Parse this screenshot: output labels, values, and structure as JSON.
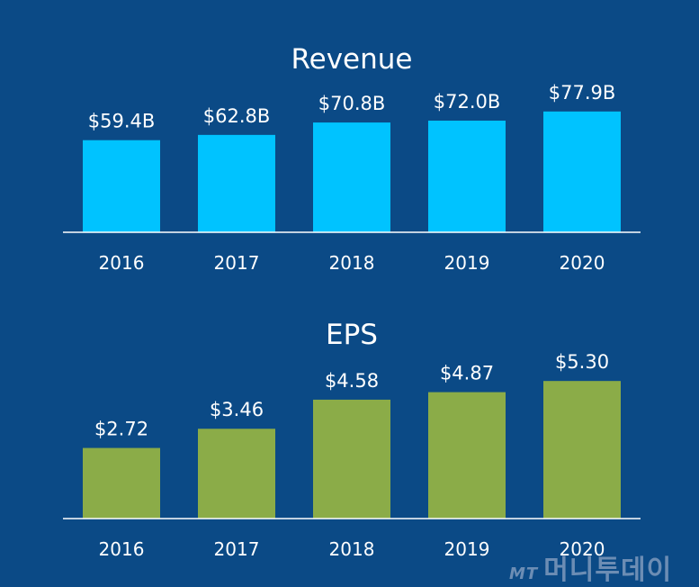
{
  "chart_data": [
    {
      "type": "bar",
      "title": "Revenue",
      "categories": [
        "2016",
        "2017",
        "2018",
        "2019",
        "2020"
      ],
      "values": [
        59.4,
        62.8,
        70.8,
        72.0,
        77.9
      ],
      "data_labels": [
        "$59.4B",
        "$62.8B",
        "$70.8B",
        "$72.0B",
        "$77.9B"
      ],
      "unit": "billion USD",
      "ylim": [
        0,
        90
      ],
      "grid": false,
      "color": "#00c3ff"
    },
    {
      "type": "bar",
      "title": "EPS",
      "categories": [
        "2016",
        "2017",
        "2018",
        "2019",
        "2020"
      ],
      "values": [
        2.72,
        3.46,
        4.58,
        4.87,
        5.3
      ],
      "data_labels": [
        "$2.72",
        "$3.46",
        "$4.58",
        "$4.87",
        "$5.30"
      ],
      "unit": "USD",
      "ylim": [
        0,
        6
      ],
      "grid": false,
      "color": "#8bac48"
    }
  ],
  "watermark": {
    "text": "MT 머니투데이"
  },
  "colors": {
    "background": "#0b4a86",
    "axis": "#ffffff"
  }
}
